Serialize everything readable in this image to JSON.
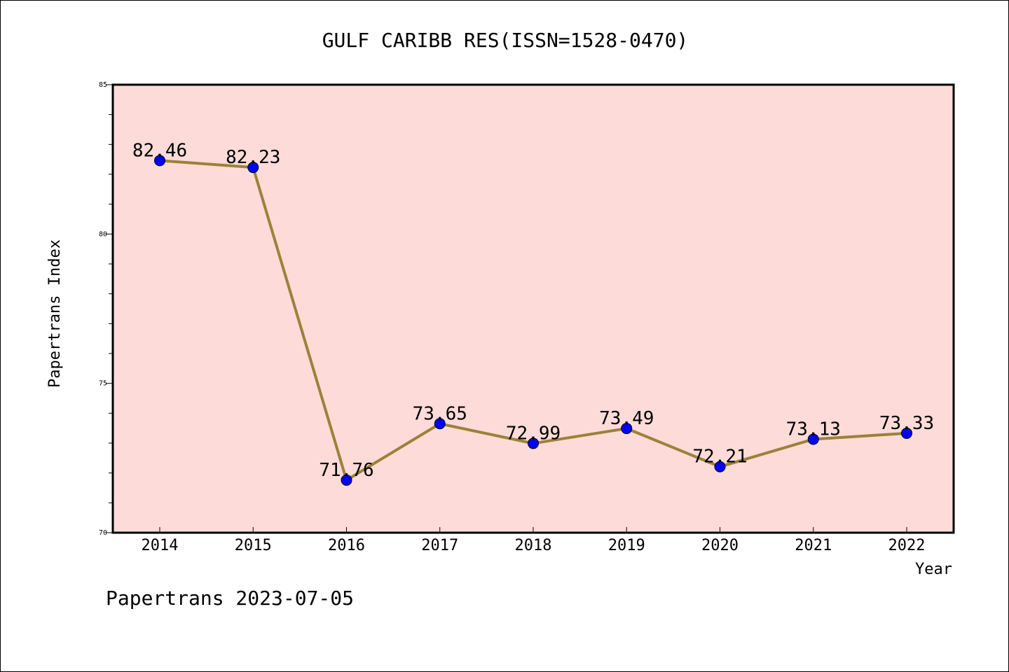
{
  "chart_data": {
    "type": "line",
    "title": "GULF CARIBB RES(ISSN=1528-0470)",
    "xlabel": "Year",
    "ylabel": "Papertrans Index",
    "x": [
      "2014",
      "2015",
      "2016",
      "2017",
      "2018",
      "2019",
      "2020",
      "2021",
      "2022"
    ],
    "series": [
      {
        "values": [
          82.46,
          82.23,
          71.76,
          73.65,
          72.99,
          73.49,
          72.21,
          73.13,
          73.33
        ],
        "labels": [
          "82.46",
          "82.23",
          "71.76",
          "73.65",
          "72.99",
          "73.49",
          "72.21",
          "73.13",
          "73.33"
        ]
      }
    ],
    "ylim": [
      70,
      85
    ],
    "yticks": [
      "70",
      "75",
      "80",
      "85"
    ],
    "grid": false,
    "colors": {
      "plot_background": "#fddbd8",
      "line": "#9a8339",
      "marker": "#0000ff"
    }
  },
  "footer": "Papertrans 2023-07-05"
}
